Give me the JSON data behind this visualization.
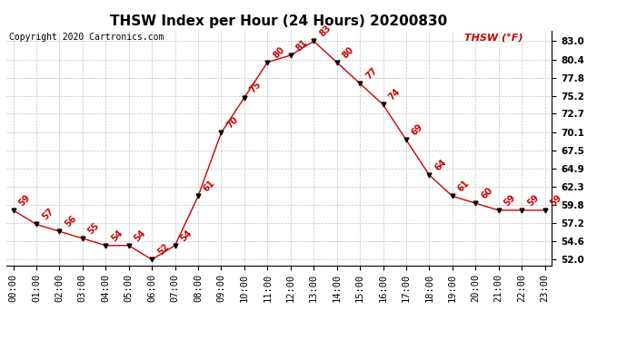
{
  "title": "THSW Index per Hour (24 Hours) 20200830",
  "copyright": "Copyright 2020 Cartronics.com",
  "legend_label": "THSW (°F)",
  "hours": [
    0,
    1,
    2,
    3,
    4,
    5,
    6,
    7,
    8,
    9,
    10,
    11,
    12,
    13,
    14,
    15,
    16,
    17,
    18,
    19,
    20,
    21,
    22,
    23
  ],
  "values": [
    59,
    57,
    56,
    55,
    54,
    54,
    52,
    54,
    61,
    70,
    75,
    80,
    81,
    83,
    80,
    77,
    74,
    69,
    64,
    61,
    60,
    59,
    59,
    59
  ],
  "x_labels": [
    "00:00",
    "01:00",
    "02:00",
    "03:00",
    "04:00",
    "05:00",
    "06:00",
    "07:00",
    "08:00",
    "09:00",
    "10:00",
    "11:00",
    "12:00",
    "13:00",
    "14:00",
    "15:00",
    "16:00",
    "17:00",
    "18:00",
    "19:00",
    "20:00",
    "21:00",
    "22:00",
    "23:00"
  ],
  "y_ticks": [
    52.0,
    54.6,
    57.2,
    59.8,
    62.3,
    64.9,
    67.5,
    70.1,
    72.7,
    75.2,
    77.8,
    80.4,
    83.0
  ],
  "y_tick_labels": [
    "52.0",
    "54.6",
    "57.2",
    "59.8",
    "62.3",
    "64.9",
    "67.5",
    "70.1",
    "72.7",
    "75.2",
    "77.8",
    "80.4",
    "83.0"
  ],
  "ylim": [
    51.2,
    84.5
  ],
  "xlim": [
    -0.3,
    23.3
  ],
  "line_color": "#cc0000",
  "marker_color": "#000000",
  "background_color": "#ffffff",
  "grid_color": "#bbbbbb",
  "title_color": "#000000",
  "copyright_color": "#000000",
  "legend_color": "#cc0000",
  "annotation_color": "#cc0000",
  "title_fontsize": 11,
  "axis_fontsize": 7.5,
  "annotation_fontsize": 7,
  "copyright_fontsize": 7,
  "legend_fontsize": 8
}
